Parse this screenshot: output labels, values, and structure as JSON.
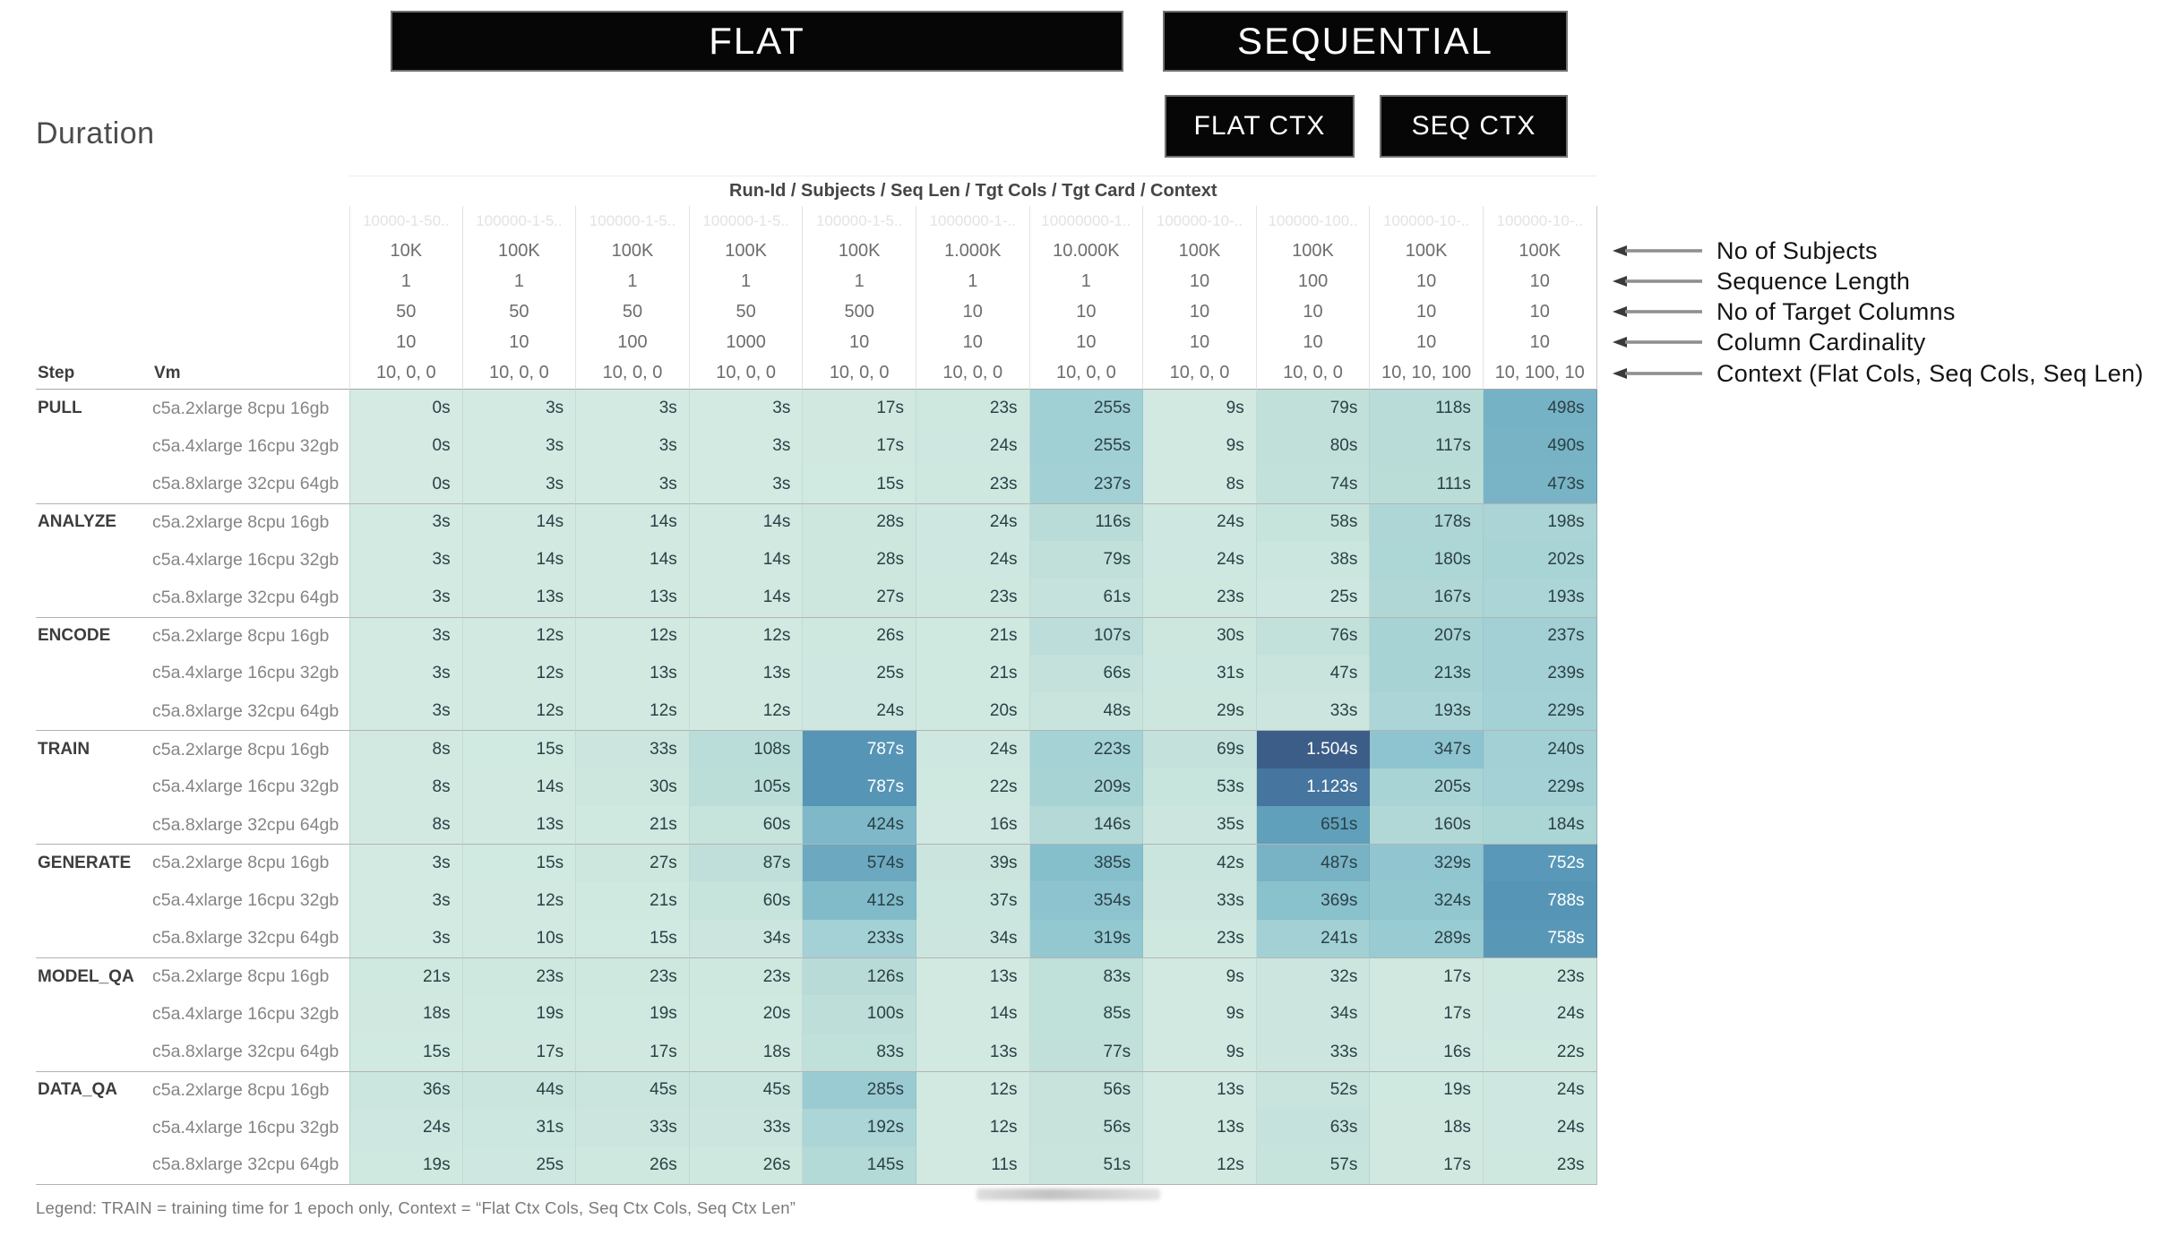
{
  "banners": {
    "flat": "FLAT",
    "sequential": "SEQUENTIAL",
    "flat_ctx": "FLAT CTX",
    "seq_ctx": "SEQ CTX"
  },
  "colors": {
    "banner_bg": "#060606",
    "banner_text": "#ffffff",
    "heatmap_min": "#d4eae3",
    "heatmap_max": "#3a5a85"
  },
  "annotations": [
    "No of Subjects",
    "Sequence Length",
    "No of Target Columns",
    "Column Cardinality",
    "Context (Flat Cols, Seq Cols, Seq Len)"
  ],
  "legend": {
    "text": "Legend: TRAIN = training time for 1 epoch only, Context = “Flat Ctx Cols, Seq Ctx Cols, Seq Ctx Len”"
  },
  "chart_data": {
    "type": "heatmap",
    "title": "Duration",
    "column_meta_label": "Run-Id / Subjects / Seq Len / Tgt Cols / Tgt Card / Context",
    "row_axis": {
      "step_label": "Step",
      "vm_label": "Vm"
    },
    "unit": "s",
    "columns": [
      {
        "run_id": "10000-1-50..",
        "subjects": "10K",
        "seq_len": "1",
        "tgt_cols": "50",
        "tgt_card": "10",
        "context": "10, 0, 0"
      },
      {
        "run_id": "100000-1-5..",
        "subjects": "100K",
        "seq_len": "1",
        "tgt_cols": "50",
        "tgt_card": "10",
        "context": "10, 0, 0"
      },
      {
        "run_id": "100000-1-5..",
        "subjects": "100K",
        "seq_len": "1",
        "tgt_cols": "50",
        "tgt_card": "100",
        "context": "10, 0, 0"
      },
      {
        "run_id": "100000-1-5..",
        "subjects": "100K",
        "seq_len": "1",
        "tgt_cols": "50",
        "tgt_card": "1000",
        "context": "10, 0, 0"
      },
      {
        "run_id": "100000-1-5..",
        "subjects": "100K",
        "seq_len": "1",
        "tgt_cols": "500",
        "tgt_card": "10",
        "context": "10, 0, 0"
      },
      {
        "run_id": "1000000-1-..",
        "subjects": "1.000K",
        "seq_len": "1",
        "tgt_cols": "10",
        "tgt_card": "10",
        "context": "10, 0, 0"
      },
      {
        "run_id": "10000000-1..",
        "subjects": "10.000K",
        "seq_len": "1",
        "tgt_cols": "10",
        "tgt_card": "10",
        "context": "10, 0, 0"
      },
      {
        "run_id": "100000-10-..",
        "subjects": "100K",
        "seq_len": "10",
        "tgt_cols": "10",
        "tgt_card": "10",
        "context": "10, 0, 0"
      },
      {
        "run_id": "100000-100..",
        "subjects": "100K",
        "seq_len": "100",
        "tgt_cols": "10",
        "tgt_card": "10",
        "context": "10, 0, 0"
      },
      {
        "run_id": "100000-10-..",
        "subjects": "100K",
        "seq_len": "10",
        "tgt_cols": "10",
        "tgt_card": "10",
        "context": "10, 10, 100"
      },
      {
        "run_id": "100000-10-..",
        "subjects": "100K",
        "seq_len": "10",
        "tgt_cols": "10",
        "tgt_card": "10",
        "context": "10, 100, 10"
      }
    ],
    "groups": [
      {
        "step": "PULL",
        "rows": [
          {
            "vm": "c5a.2xlarge 8cpu 16gb",
            "values": [
              0,
              3,
              3,
              3,
              17,
              23,
              255,
              9,
              79,
              118,
              498
            ]
          },
          {
            "vm": "c5a.4xlarge 16cpu 32gb",
            "values": [
              0,
              3,
              3,
              3,
              17,
              24,
              255,
              9,
              80,
              117,
              490
            ]
          },
          {
            "vm": "c5a.8xlarge 32cpu 64gb",
            "values": [
              0,
              3,
              3,
              3,
              15,
              23,
              237,
              8,
              74,
              111,
              473
            ]
          }
        ]
      },
      {
        "step": "ANALYZE",
        "rows": [
          {
            "vm": "c5a.2xlarge 8cpu 16gb",
            "values": [
              3,
              14,
              14,
              14,
              28,
              24,
              116,
              24,
              58,
              178,
              198
            ]
          },
          {
            "vm": "c5a.4xlarge 16cpu 32gb",
            "values": [
              3,
              14,
              14,
              14,
              28,
              24,
              79,
              24,
              38,
              180,
              202
            ]
          },
          {
            "vm": "c5a.8xlarge 32cpu 64gb",
            "values": [
              3,
              13,
              13,
              14,
              27,
              23,
              61,
              23,
              25,
              167,
              193
            ]
          }
        ]
      },
      {
        "step": "ENCODE",
        "rows": [
          {
            "vm": "c5a.2xlarge 8cpu 16gb",
            "values": [
              3,
              12,
              12,
              12,
              26,
              21,
              107,
              30,
              76,
              207,
              237
            ]
          },
          {
            "vm": "c5a.4xlarge 16cpu 32gb",
            "values": [
              3,
              12,
              13,
              13,
              25,
              21,
              66,
              31,
              47,
              213,
              239
            ]
          },
          {
            "vm": "c5a.8xlarge 32cpu 64gb",
            "values": [
              3,
              12,
              12,
              12,
              24,
              20,
              48,
              29,
              33,
              193,
              229
            ]
          }
        ]
      },
      {
        "step": "TRAIN",
        "rows": [
          {
            "vm": "c5a.2xlarge 8cpu 16gb",
            "values": [
              8,
              15,
              33,
              108,
              787,
              24,
              223,
              69,
              1504,
              347,
              240
            ]
          },
          {
            "vm": "c5a.4xlarge 16cpu 32gb",
            "values": [
              8,
              14,
              30,
              105,
              787,
              22,
              209,
              53,
              1123,
              205,
              229
            ]
          },
          {
            "vm": "c5a.8xlarge 32cpu 64gb",
            "values": [
              8,
              13,
              21,
              60,
              424,
              16,
              146,
              35,
              651,
              160,
              184
            ]
          }
        ]
      },
      {
        "step": "GENERATE",
        "rows": [
          {
            "vm": "c5a.2xlarge 8cpu 16gb",
            "values": [
              3,
              15,
              27,
              87,
              574,
              39,
              385,
              42,
              487,
              329,
              752
            ]
          },
          {
            "vm": "c5a.4xlarge 16cpu 32gb",
            "values": [
              3,
              12,
              21,
              60,
              412,
              37,
              354,
              33,
              369,
              324,
              788
            ]
          },
          {
            "vm": "c5a.8xlarge 32cpu 64gb",
            "values": [
              3,
              10,
              15,
              34,
              233,
              34,
              319,
              23,
              241,
              289,
              758
            ]
          }
        ]
      },
      {
        "step": "MODEL_QA",
        "rows": [
          {
            "vm": "c5a.2xlarge 8cpu 16gb",
            "values": [
              21,
              23,
              23,
              23,
              126,
              13,
              83,
              9,
              32,
              17,
              23
            ]
          },
          {
            "vm": "c5a.4xlarge 16cpu 32gb",
            "values": [
              18,
              19,
              19,
              20,
              100,
              14,
              85,
              9,
              34,
              17,
              24
            ]
          },
          {
            "vm": "c5a.8xlarge 32cpu 64gb",
            "values": [
              15,
              17,
              17,
              18,
              83,
              13,
              77,
              9,
              33,
              16,
              22
            ]
          }
        ]
      },
      {
        "step": "DATA_QA",
        "rows": [
          {
            "vm": "c5a.2xlarge 8cpu 16gb",
            "values": [
              36,
              44,
              45,
              45,
              285,
              12,
              56,
              13,
              52,
              19,
              24
            ]
          },
          {
            "vm": "c5a.4xlarge 16cpu 32gb",
            "values": [
              24,
              31,
              33,
              33,
              192,
              12,
              56,
              13,
              63,
              18,
              24
            ]
          },
          {
            "vm": "c5a.8xlarge 32cpu 64gb",
            "values": [
              19,
              25,
              26,
              26,
              145,
              11,
              51,
              12,
              57,
              17,
              23
            ]
          }
        ]
      }
    ],
    "color_scale": {
      "stops": [
        [
          0,
          "#d4eae3"
        ],
        [
          20,
          "#cfe8e0"
        ],
        [
          50,
          "#c8e4dd"
        ],
        [
          80,
          "#c1e0da"
        ],
        [
          120,
          "#b9dcd8"
        ],
        [
          170,
          "#afd7d6"
        ],
        [
          220,
          "#a6d2d5"
        ],
        [
          280,
          "#9bccd3"
        ],
        [
          350,
          "#8dc4cf"
        ],
        [
          430,
          "#7eb8c8"
        ],
        [
          520,
          "#74b0c4"
        ],
        [
          650,
          "#60a0bb"
        ],
        [
          800,
          "#5694b6"
        ],
        [
          1000,
          "#4a7fa6"
        ],
        [
          1200,
          "#446f9b"
        ],
        [
          1550,
          "#3a5a85"
        ]
      ],
      "white_text_min": 700
    }
  }
}
